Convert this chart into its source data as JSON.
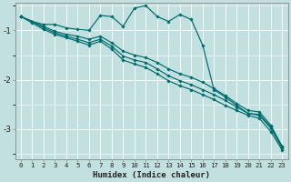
{
  "background_color": "#c2e0e0",
  "grid_color": "#ffffff",
  "line_color": "#006b6b",
  "ylabel_ticks": [
    -1,
    -2,
    -3
  ],
  "xlabel": "Humidex (Indice chaleur)",
  "xlim": [
    -0.5,
    23.5
  ],
  "ylim": [
    -3.6,
    -0.45
  ],
  "lines": [
    {
      "x": [
        0,
        1,
        2,
        3,
        4,
        5,
        6,
        7,
        8,
        9,
        10,
        11,
        12,
        13,
        14,
        15,
        16,
        17,
        18,
        19,
        20,
        21,
        22,
        23
      ],
      "y": [
        -0.72,
        -0.82,
        -0.88,
        -0.88,
        -0.95,
        -0.98,
        -1.0,
        -0.7,
        -0.72,
        -0.92,
        -0.55,
        -0.5,
        -0.72,
        -0.82,
        -0.68,
        -0.78,
        -1.3,
        -2.2,
        -2.35,
        -2.52,
        -2.68,
        -2.7,
        -2.95,
        -3.35
      ]
    },
    {
      "x": [
        0,
        1,
        2,
        3,
        4,
        5,
        6,
        7,
        8,
        9,
        10,
        11,
        12,
        13,
        14,
        15,
        16,
        17,
        18,
        19,
        20,
        21,
        22,
        23
      ],
      "y": [
        -0.72,
        -0.82,
        -0.92,
        -1.02,
        -1.08,
        -1.12,
        -1.18,
        -1.12,
        -1.25,
        -1.42,
        -1.5,
        -1.55,
        -1.65,
        -1.78,
        -1.88,
        -1.95,
        -2.05,
        -2.18,
        -2.32,
        -2.48,
        -2.62,
        -2.65,
        -2.92,
        -3.35
      ]
    },
    {
      "x": [
        0,
        1,
        2,
        3,
        4,
        5,
        6,
        7,
        8,
        9,
        10,
        11,
        12,
        13,
        14,
        15,
        16,
        17,
        18,
        19,
        20,
        21,
        22,
        23
      ],
      "y": [
        -0.72,
        -0.82,
        -0.95,
        -1.05,
        -1.12,
        -1.18,
        -1.25,
        -1.18,
        -1.32,
        -1.52,
        -1.6,
        -1.65,
        -1.78,
        -1.92,
        -2.02,
        -2.1,
        -2.2,
        -2.3,
        -2.42,
        -2.55,
        -2.68,
        -2.72,
        -2.98,
        -3.38
      ]
    },
    {
      "x": [
        0,
        1,
        2,
        3,
        4,
        5,
        6,
        7,
        8,
        9,
        10,
        11,
        12,
        13,
        14,
        15,
        16,
        17,
        18,
        19,
        20,
        21,
        22,
        23
      ],
      "y": [
        -0.72,
        -0.85,
        -0.98,
        -1.08,
        -1.15,
        -1.22,
        -1.3,
        -1.22,
        -1.38,
        -1.6,
        -1.68,
        -1.75,
        -1.88,
        -2.02,
        -2.12,
        -2.2,
        -2.3,
        -2.4,
        -2.52,
        -2.62,
        -2.72,
        -2.78,
        -3.05,
        -3.42
      ]
    }
  ],
  "marker": "D",
  "marker_size": 1.8,
  "linewidth": 0.85,
  "figsize": [
    3.2,
    2.0
  ],
  "dpi": 100,
  "title_fontsize": 7,
  "xlabel_fontsize": 6.5,
  "ytick_fontsize": 6.5,
  "xtick_fontsize": 5.2
}
